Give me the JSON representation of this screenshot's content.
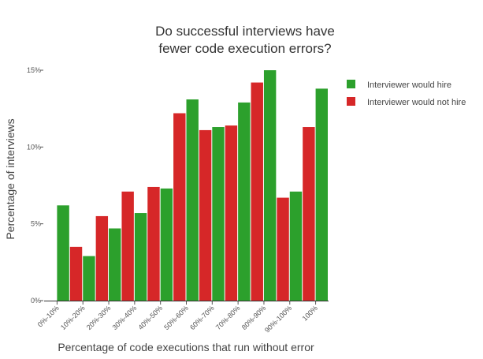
{
  "chart_data": {
    "type": "bar",
    "title_lines": [
      "Do successful interviews have",
      "fewer code execution errors?"
    ],
    "xlabel": "Percentage of code executions that run without error",
    "ylabel": "Percentage of interviews",
    "categories": [
      "0%-10%",
      "10%-20%",
      "20%-30%",
      "30%-40%",
      "40%-50%",
      "50%-60%",
      "60%-70%",
      "70%-80%",
      "80%-90%",
      "90%-100%",
      "100%"
    ],
    "series": [
      {
        "name": "Interviewer would not hire",
        "color": "#d62728",
        "values": [
          0,
          3.5,
          5.5,
          7.1,
          7.4,
          12.2,
          11.1,
          11.4,
          14.2,
          6.7,
          11.3
        ]
      },
      {
        "name": "Interviewer would hire",
        "color": "#2ca02c",
        "values": [
          6.2,
          2.9,
          4.7,
          5.7,
          7.3,
          13.1,
          11.3,
          12.9,
          15.0,
          7.1,
          13.8
        ]
      }
    ],
    "legend": [
      "Interviewer would hire",
      "Interviewer would not hire"
    ],
    "ylim": [
      0,
      15
    ],
    "yticks": [
      0,
      5,
      10,
      15
    ],
    "ytick_labels": [
      "0%",
      "5%",
      "10%",
      "15%"
    ],
    "legend_position": "top-right"
  }
}
